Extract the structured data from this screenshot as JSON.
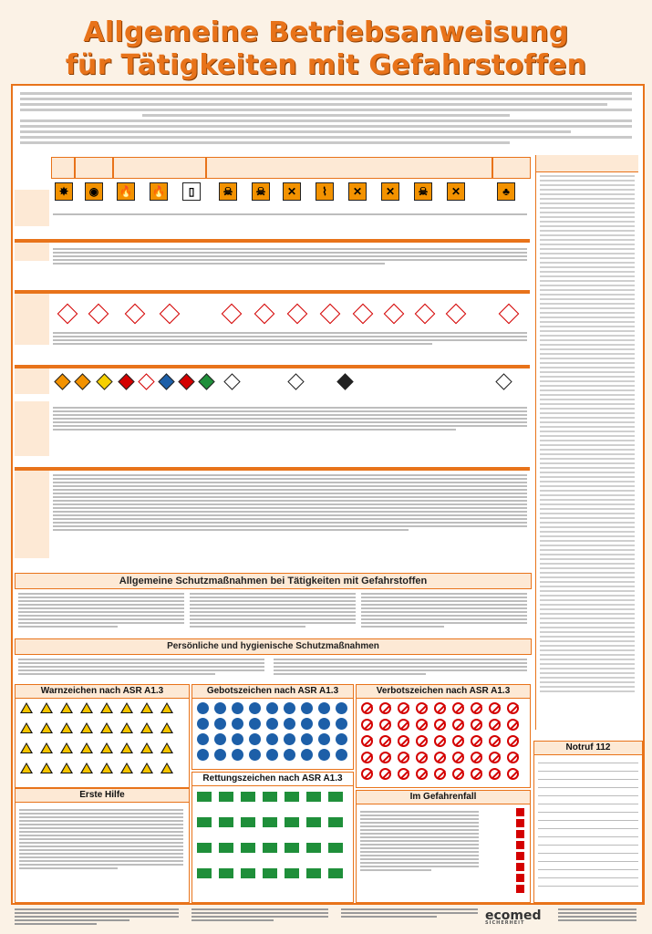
{
  "poster": {
    "title_line1": "Allgemeine Betriebsanweisung",
    "title_line2": "für Tätigkeiten mit Gefahrstoffen"
  },
  "sections": {
    "schutz": "Allgemeine Schutzmaßnahmen bei Tätigkeiten mit Gefahrstoffen",
    "hygiene": "Persönliche und hygienische Schutzmaßnahmen",
    "warn": "Warnzeichen nach ASR A1.3",
    "gebot": "Gebotszeichen nach ASR A1.3",
    "verbot": "Verbotszeichen nach ASR A1.3",
    "erste_hilfe": "Erste Hilfe",
    "rettung": "Rettungszeichen nach ASR A1.3",
    "gefahrenfall": "Im Gefahrenfall",
    "notruf": "Notruf 112"
  },
  "footer": {
    "logo": "ecomed",
    "logo_sub": "SICHERHEIT"
  },
  "colors": {
    "accent": "#e8731a",
    "warning_yellow": "#f5c400",
    "mandatory_blue": "#1d5fa8",
    "prohibition_red": "#d40000",
    "rescue_green": "#1f8f3a"
  }
}
